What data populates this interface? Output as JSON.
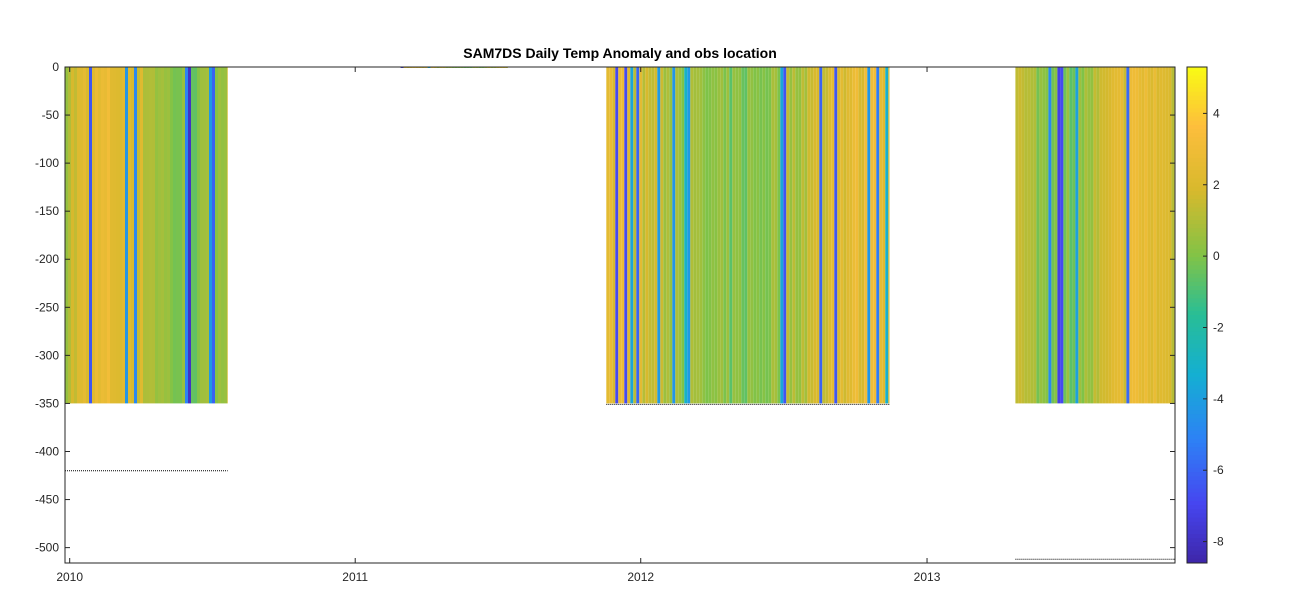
{
  "chart_data": {
    "type": "heatmap",
    "title": "SAM7DS Daily Temp Anomaly and obs location",
    "xlabel": "",
    "ylabel": "",
    "x_range": [
      "2009-12-26",
      "2013-11-14"
    ],
    "ylim": [
      -516,
      0
    ],
    "x_tick_labels": [
      "2010",
      "2011",
      "2012",
      "2013"
    ],
    "x_tick_dates": [
      "2010-01-01",
      "2011-01-01",
      "2012-01-01",
      "2013-01-01"
    ],
    "y_ticks": [
      0,
      -50,
      -100,
      -150,
      -200,
      -250,
      -300,
      -350,
      -400,
      -450,
      -500
    ],
    "y_tick_labels": [
      "0",
      "-50",
      "-100",
      "-150",
      "-200",
      "-250",
      "-300",
      "-350",
      "-400",
      "-450",
      "-500"
    ],
    "colorbar": {
      "colormap": "parula",
      "clim": [
        -8.6,
        5.3
      ],
      "ticks": [
        4,
        2,
        0,
        -2,
        -4,
        -6,
        -8
      ],
      "tick_labels": [
        "4",
        "2",
        "0",
        "-2",
        "-4",
        "-6",
        "-8"
      ]
    },
    "data_blocks": [
      {
        "start": "2009-12-26",
        "end": "2010-07-22",
        "depth_top": 0,
        "depth_bottom": -350,
        "obs_depth": -420
      },
      {
        "start": "2011-02-28",
        "end": "2011-07-15",
        "depth_top": 0,
        "depth_bottom": -1,
        "obs_depth": null
      },
      {
        "start": "2011-11-18",
        "end": "2012-11-14",
        "depth_top": 0,
        "depth_bottom": -350,
        "obs_depth": -351
      },
      {
        "start": "2013-04-24",
        "end": "2013-11-14",
        "depth_top": 0,
        "depth_bottom": -350,
        "obs_depth": -512
      }
    ],
    "grid": false,
    "legend": "none"
  }
}
